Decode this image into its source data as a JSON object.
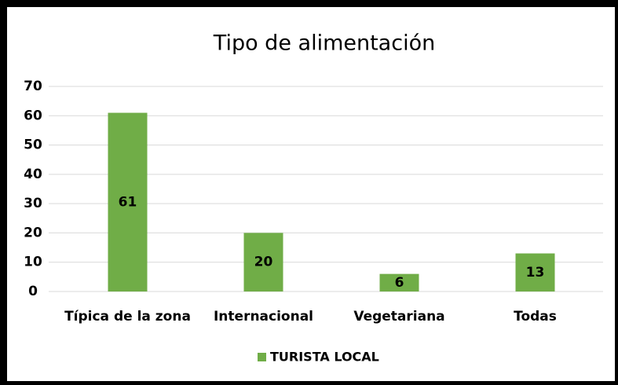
{
  "chart_data": {
    "type": "bar",
    "title": "Tipo de alimentación",
    "categories": [
      "Típica de la zona",
      "Internacional",
      "Vegetariana",
      "Todas"
    ],
    "series": [
      {
        "name": "TURISTA LOCAL",
        "color": "#70ad47",
        "values": [
          61,
          20,
          6,
          13
        ]
      }
    ],
    "ylim": [
      0,
      70
    ],
    "yticks": [
      0,
      10,
      20,
      30,
      40,
      50,
      60,
      70
    ],
    "grid": true,
    "legend": "bottom"
  }
}
